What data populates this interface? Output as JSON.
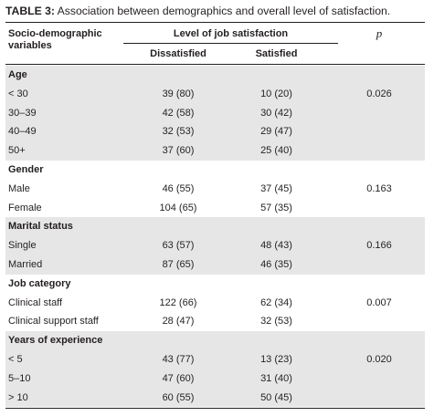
{
  "caption": {
    "label": "TABLE 3:",
    "text": " Association between demographics and overall level of satisfaction."
  },
  "header": {
    "variable": "Socio-demographic variables",
    "level": "Level of job satisfaction",
    "dissatisfied": "Dissatisfied",
    "satisfied": "Satisfied",
    "p": "p"
  },
  "groups": [
    {
      "title": "Age",
      "rows": [
        {
          "label": "< 30",
          "dissatisfied": "39 (80)",
          "satisfied": "10 (20)",
          "p": "0.026"
        },
        {
          "label": "30–39",
          "dissatisfied": "42 (58)",
          "satisfied": "30 (42)",
          "p": ""
        },
        {
          "label": "40–49",
          "dissatisfied": "32 (53)",
          "satisfied": "29 (47)",
          "p": ""
        },
        {
          "label": "50+",
          "dissatisfied": "37 (60)",
          "satisfied": "25 (40)",
          "p": ""
        }
      ]
    },
    {
      "title": "Gender",
      "rows": [
        {
          "label": "Male",
          "dissatisfied": "46 (55)",
          "satisfied": "37 (45)",
          "p": "0.163"
        },
        {
          "label": "Female",
          "dissatisfied": "104 (65)",
          "satisfied": "57 (35)",
          "p": ""
        }
      ]
    },
    {
      "title": "Marital status",
      "rows": [
        {
          "label": "Single",
          "dissatisfied": "63 (57)",
          "satisfied": "48 (43)",
          "p": "0.166"
        },
        {
          "label": "Married",
          "dissatisfied": "87 (65)",
          "satisfied": "46 (35)",
          "p": ""
        }
      ]
    },
    {
      "title": "Job category",
      "rows": [
        {
          "label": "Clinical staff",
          "dissatisfied": "122 (66)",
          "satisfied": "62 (34)",
          "p": "0.007"
        },
        {
          "label": "Clinical support staff",
          "dissatisfied": "28 (47)",
          "satisfied": "32 (53)",
          "p": ""
        }
      ]
    },
    {
      "title": "Years of experience",
      "rows": [
        {
          "label": "< 5",
          "dissatisfied": "43 (77)",
          "satisfied": "13 (23)",
          "p": "0.020"
        },
        {
          "label": "5–10",
          "dissatisfied": "47 (60)",
          "satisfied": "31 (40)",
          "p": ""
        },
        {
          "label": "> 10",
          "dissatisfied": "60 (55)",
          "satisfied": "50 (45)",
          "p": ""
        }
      ]
    }
  ]
}
